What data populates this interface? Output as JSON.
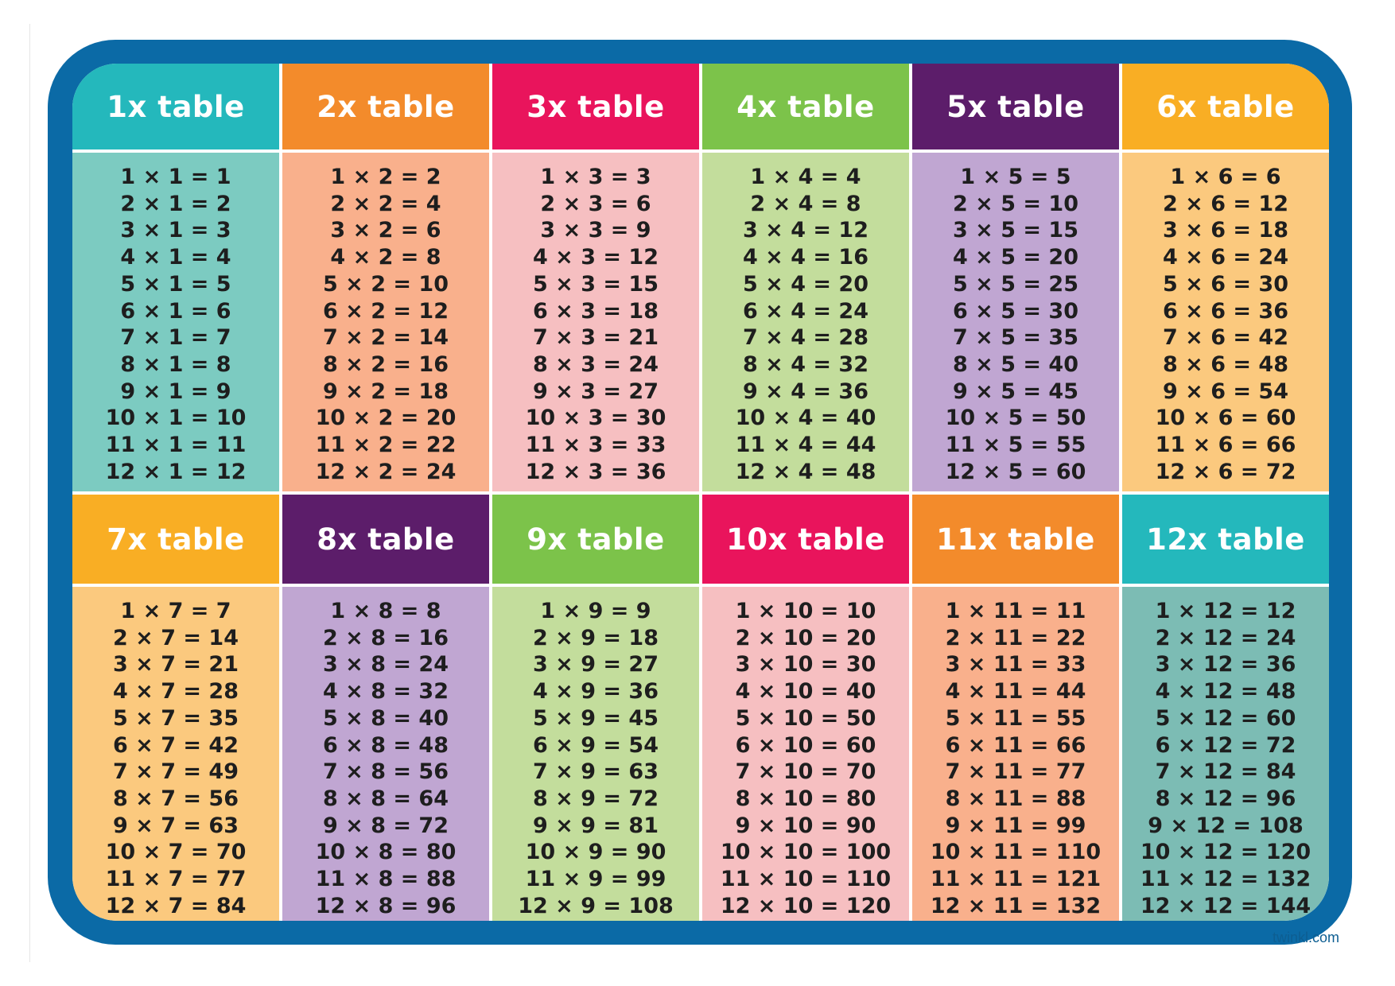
{
  "footer": {
    "text": "twinkl.com"
  },
  "tables": [
    {
      "title": "1x table",
      "header_color": "#24b8bc",
      "body_color": "#7ccbc1",
      "facts": [
        "1 × 1 = 1",
        "2 × 1 = 2",
        "3 × 1 = 3",
        "4 × 1 = 4",
        "5 × 1 = 5",
        "6 × 1 = 6",
        "7 × 1 = 7",
        "8 × 1 = 8",
        "9 × 1 = 9",
        "10 × 1 = 10",
        "11 × 1 = 11",
        "12 × 1 = 12"
      ]
    },
    {
      "title": "2x table",
      "header_color": "#f38b2b",
      "body_color": "#f9b08c",
      "facts": [
        "1 × 2 = 2",
        "2 × 2 = 4",
        "3 × 2 = 6",
        "4 × 2 = 8",
        "5 × 2 = 10",
        "6 × 2 = 12",
        "7 × 2 = 14",
        "8 × 2 = 16",
        "9 × 2 = 18",
        "10 × 2 = 20",
        "11 × 2 = 22",
        "12 × 2 = 24"
      ]
    },
    {
      "title": "3x table",
      "header_color": "#e9145c",
      "body_color": "#f6bfc1",
      "facts": [
        "1 × 3 = 3",
        "2 × 3 = 6",
        "3 × 3 = 9",
        "4 × 3 = 12",
        "5 × 3 = 15",
        "6 × 3 = 18",
        "7 × 3 = 21",
        "8 × 3 = 24",
        "9 × 3 = 27",
        "10 × 3 = 30",
        "11 × 3 = 33",
        "12 × 3 = 36"
      ]
    },
    {
      "title": "4x table",
      "header_color": "#7cc34a",
      "body_color": "#c3dd9c",
      "facts": [
        "1 × 4 = 4",
        "2 × 4 = 8",
        "3 × 4 = 12",
        "4 × 4 = 16",
        "5 × 4 = 20",
        "6 × 4 = 24",
        "7 × 4 = 28",
        "8 × 4 = 32",
        "9 × 4 = 36",
        "10 × 4 = 40",
        "11 × 4 = 44",
        "12 × 4 = 48"
      ]
    },
    {
      "title": "5x table",
      "header_color": "#5c1d6a",
      "body_color": "#c0a6d2",
      "facts": [
        "1 × 5 = 5",
        "2 × 5 = 10",
        "3 × 5 = 15",
        "4 × 5 = 20",
        "5 × 5 = 25",
        "6 × 5 = 30",
        "7 × 5 = 35",
        "8 × 5 = 40",
        "9 × 5 = 45",
        "10 × 5 = 50",
        "11 × 5 = 55",
        "12 × 5 = 60"
      ]
    },
    {
      "title": "6x table",
      "header_color": "#f9ae24",
      "body_color": "#fbc97e",
      "facts": [
        "1 × 6 = 6",
        "2 × 6 = 12",
        "3 × 6 = 18",
        "4 × 6 = 24",
        "5 × 6 = 30",
        "6 × 6 = 36",
        "7 × 6 = 42",
        "8 × 6 = 48",
        "9 × 6 = 54",
        "10 × 6 = 60",
        "11 × 6 = 66",
        "12 × 6 = 72"
      ]
    },
    {
      "title": "7x table",
      "header_color": "#f9ae24",
      "body_color": "#fbc97e",
      "facts": [
        "1 × 7 = 7",
        "2 × 7 = 14",
        "3 × 7 = 21",
        "4 × 7 = 28",
        "5 × 7 = 35",
        "6 × 7 = 42",
        "7 × 7 = 49",
        "8 × 7 = 56",
        "9 × 7 = 63",
        "10 × 7 = 70",
        "11 × 7 = 77",
        "12 × 7 = 84"
      ]
    },
    {
      "title": "8x table",
      "header_color": "#5c1d6a",
      "body_color": "#c0a6d2",
      "facts": [
        "1 × 8 = 8",
        "2 × 8 = 16",
        "3 × 8 = 24",
        "4 × 8 = 32",
        "5 × 8 = 40",
        "6 × 8 = 48",
        "7 × 8 = 56",
        "8 × 8 = 64",
        "9 × 8 = 72",
        "10 × 8 = 80",
        "11 × 8 = 88",
        "12 × 8 = 96"
      ]
    },
    {
      "title": "9x table",
      "header_color": "#7cc34a",
      "body_color": "#c3dd9c",
      "facts": [
        "1 × 9 = 9",
        "2 × 9 = 18",
        "3 × 9 = 27",
        "4 × 9 = 36",
        "5 × 9 = 45",
        "6 × 9 = 54",
        "7 × 9 = 63",
        "8 × 9 = 72",
        "9 × 9 = 81",
        "10 × 9 = 90",
        "11 × 9 = 99",
        "12 × 9 = 108"
      ]
    },
    {
      "title": "10x table",
      "header_color": "#e9145c",
      "body_color": "#f6bfc1",
      "facts": [
        "1 × 10 = 10",
        "2 × 10 = 20",
        "3 × 10 = 30",
        "4 × 10 = 40",
        "5 × 10 = 50",
        "6 × 10 = 60",
        "7 × 10 = 70",
        "8 × 10 = 80",
        "9 × 10 = 90",
        "10 × 10 = 100",
        "11 × 10 = 110",
        "12 × 10 = 120"
      ]
    },
    {
      "title": "11x table",
      "header_color": "#f38b2b",
      "body_color": "#f9b08c",
      "facts": [
        "1 × 11 = 11",
        "2 × 11 = 22",
        "3 × 11 = 33",
        "4 × 11 = 44",
        "5 × 11 = 55",
        "6 × 11 = 66",
        "7 × 11 = 77",
        "8 × 11 = 88",
        "9 × 11 = 99",
        "10 × 11 = 110",
        "11 × 11 = 121",
        "12 × 11 = 132"
      ]
    },
    {
      "title": "12x table",
      "header_color": "#24b8bc",
      "body_color": "#7cbcb4",
      "facts": [
        "1 × 12 = 12",
        "2 × 12 = 24",
        "3 × 12 = 36",
        "4 × 12 = 48",
        "5 × 12 = 60",
        "6 × 12 = 72",
        "7 × 12 = 84",
        "8 × 12 = 96",
        "9 × 12 = 108",
        "10 × 12 = 120",
        "11 × 12 = 132",
        "12 × 12 = 144"
      ]
    }
  ]
}
